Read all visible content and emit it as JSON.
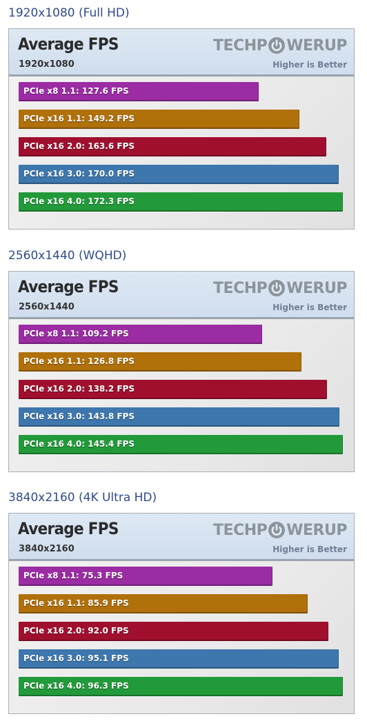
{
  "brand": {
    "logo_text_left": "TECHP",
    "logo_text_right": "WERUP",
    "tagline": "Higher is Better"
  },
  "colors": {
    "heading": "#2f4b8c",
    "logo": "#8c949b"
  },
  "sections": [
    {
      "heading": "1920x1080 (Full HD)",
      "chart_title": "Average FPS",
      "chart_subtitle": "1920x1080"
    },
    {
      "heading": "2560x1440 (WQHD)",
      "chart_title": "Average FPS",
      "chart_subtitle": "2560x1440"
    },
    {
      "heading": "3840x2160 (4K Ultra HD)",
      "chart_title": "Average FPS",
      "chart_subtitle": "3840x2160"
    }
  ],
  "chart_data": [
    {
      "type": "bar",
      "orientation": "horizontal",
      "title": "Average FPS",
      "subtitle": "1920x1080",
      "categories": [
        "PCIe x8 1.1",
        "PCIe x16 1.1",
        "PCIe x16 2.0",
        "PCIe x16 3.0",
        "PCIe x16 4.0"
      ],
      "values": [
        127.6,
        149.2,
        163.6,
        170.0,
        172.3
      ],
      "labels": [
        "PCIe x8 1.1: 127.6 FPS",
        "PCIe x16 1.1: 149.2 FPS",
        "PCIe x16 2.0: 163.6 FPS",
        "PCIe x16 3.0: 170.0 FPS",
        "PCIe x16 4.0: 172.3 FPS"
      ],
      "colors": [
        "#9b2ca3",
        "#b0700a",
        "#a0102e",
        "#3d77ad",
        "#229a3a"
      ],
      "unit": "FPS",
      "grid": false
    },
    {
      "type": "bar",
      "orientation": "horizontal",
      "title": "Average FPS",
      "subtitle": "2560x1440",
      "categories": [
        "PCIe x8 1.1",
        "PCIe x16 1.1",
        "PCIe x16 2.0",
        "PCIe x16 3.0",
        "PCIe x16 4.0"
      ],
      "values": [
        109.2,
        126.8,
        138.2,
        143.8,
        145.4
      ],
      "labels": [
        "PCIe x8 1.1: 109.2 FPS",
        "PCIe x16 1.1: 126.8 FPS",
        "PCIe x16 2.0: 138.2 FPS",
        "PCIe x16 3.0: 143.8 FPS",
        "PCIe x16 4.0: 145.4 FPS"
      ],
      "colors": [
        "#9b2ca3",
        "#b0700a",
        "#a0102e",
        "#3d77ad",
        "#229a3a"
      ],
      "unit": "FPS",
      "grid": false
    },
    {
      "type": "bar",
      "orientation": "horizontal",
      "title": "Average FPS",
      "subtitle": "3840x2160",
      "categories": [
        "PCIe x8 1.1",
        "PCIe x16 1.1",
        "PCIe x16 2.0",
        "PCIe x16 3.0",
        "PCIe x16 4.0"
      ],
      "values": [
        75.3,
        85.9,
        92.0,
        95.1,
        96.3
      ],
      "labels": [
        "PCIe x8 1.1: 75.3 FPS",
        "PCIe x16 1.1: 85.9 FPS",
        "PCIe x16 2.0: 92.0 FPS",
        "PCIe x16 3.0: 95.1 FPS",
        "PCIe x16 4.0: 96.3 FPS"
      ],
      "colors": [
        "#9b2ca3",
        "#b0700a",
        "#a0102e",
        "#3d77ad",
        "#229a3a"
      ],
      "unit": "FPS",
      "grid": false
    }
  ]
}
